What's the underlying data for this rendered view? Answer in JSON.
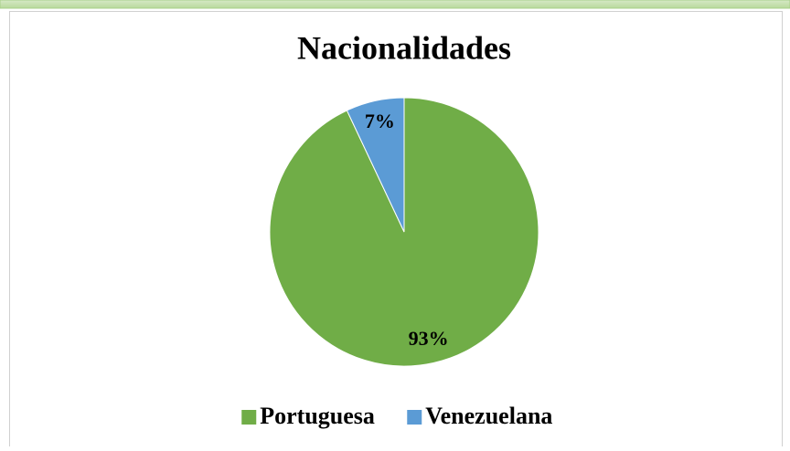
{
  "chart_data": {
    "type": "pie",
    "title": "Nacionalidades",
    "categories": [
      "Portuguesa",
      "Venezuelana"
    ],
    "values": [
      93,
      7
    ],
    "value_labels": [
      "93%",
      "7%"
    ],
    "colors": [
      "#70ad47",
      "#5b9bd5"
    ],
    "legend": "bottom"
  }
}
